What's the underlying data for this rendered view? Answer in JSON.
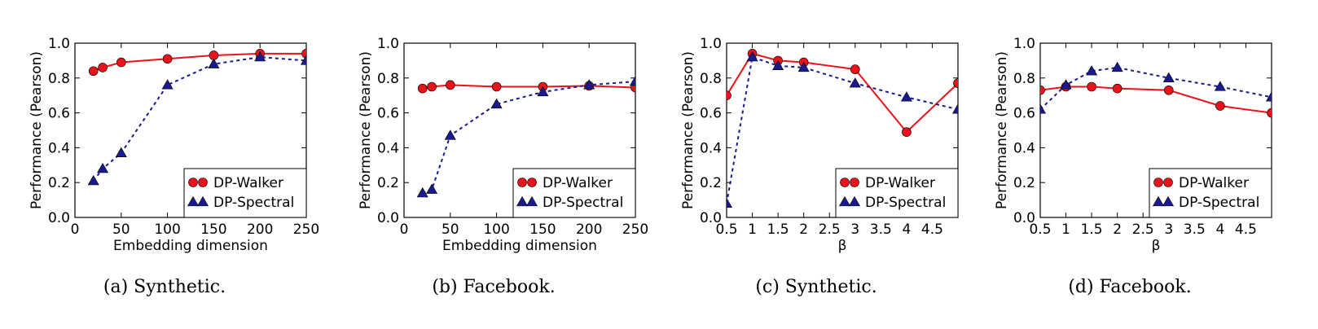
{
  "colors": {
    "walker": "#e8131b",
    "spectral": "#1a1a8f"
  },
  "chart_data": [
    {
      "type": "line",
      "caption": "(a) Synthetic.",
      "xlabel": "Embedding dimension",
      "ylabel": "Performance (Pearson)",
      "xlim": [
        0,
        250
      ],
      "ylim": [
        0.0,
        1.0
      ],
      "xticks": [
        0,
        50,
        100,
        150,
        200,
        250
      ],
      "xtick_labels": [
        "0",
        "50",
        "100",
        "150",
        "200",
        "250"
      ],
      "yticks": [
        0.0,
        0.2,
        0.4,
        0.6,
        0.8,
        1.0
      ],
      "ytick_labels": [
        "0.0",
        "0.2",
        "0.4",
        "0.6",
        "0.8",
        "1.0"
      ],
      "legend_position": "lower-right",
      "series": [
        {
          "name": "DP-Walker",
          "x": [
            20,
            30,
            50,
            100,
            150,
            200,
            250
          ],
          "y": [
            0.84,
            0.86,
            0.89,
            0.91,
            0.93,
            0.94,
            0.94
          ]
        },
        {
          "name": "DP-Spectral",
          "x": [
            20,
            30,
            50,
            100,
            150,
            200,
            250
          ],
          "y": [
            0.21,
            0.28,
            0.37,
            0.76,
            0.88,
            0.92,
            0.9
          ]
        }
      ]
    },
    {
      "type": "line",
      "caption": "(b) Facebook.",
      "xlabel": "Embedding dimension",
      "ylabel": "Performance (Pearson)",
      "xlim": [
        0,
        250
      ],
      "ylim": [
        0.0,
        1.0
      ],
      "xticks": [
        0,
        50,
        100,
        150,
        200,
        250
      ],
      "xtick_labels": [
        "0",
        "50",
        "100",
        "150",
        "200",
        "250"
      ],
      "yticks": [
        0.0,
        0.2,
        0.4,
        0.6,
        0.8,
        1.0
      ],
      "ytick_labels": [
        "0.0",
        "0.2",
        "0.4",
        "0.6",
        "0.8",
        "1.0"
      ],
      "legend_position": "lower-right",
      "series": [
        {
          "name": "DP-Walker",
          "x": [
            20,
            30,
            50,
            100,
            150,
            200,
            250
          ],
          "y": [
            0.74,
            0.75,
            0.76,
            0.75,
            0.75,
            0.755,
            0.745
          ]
        },
        {
          "name": "DP-Spectral",
          "x": [
            20,
            30,
            50,
            100,
            150,
            200,
            250
          ],
          "y": [
            0.14,
            0.16,
            0.47,
            0.65,
            0.72,
            0.76,
            0.78
          ]
        }
      ]
    },
    {
      "type": "line",
      "caption": "(c) Synthetic.",
      "xlabel": "β",
      "ylabel": "Performance (Pearson)",
      "xlim": [
        0.5,
        5
      ],
      "ylim": [
        0.0,
        1.0
      ],
      "xticks": [
        0.5,
        1,
        1.5,
        2,
        2.5,
        3,
        3.5,
        4,
        4.5
      ],
      "xtick_labels": [
        "0.5",
        "1",
        "1.5",
        "2",
        "2.5",
        "3",
        "3.5",
        "4",
        "4.5"
      ],
      "yticks": [
        0.0,
        0.2,
        0.4,
        0.6,
        0.8,
        1.0
      ],
      "ytick_labels": [
        "0.0",
        "0.2",
        "0.4",
        "0.6",
        "0.8",
        "1.0"
      ],
      "legend_position": "lower-right",
      "series": [
        {
          "name": "DP-Walker",
          "x": [
            0.5,
            1,
            1.5,
            2,
            3,
            4,
            5
          ],
          "y": [
            0.7,
            0.94,
            0.9,
            0.89,
            0.85,
            0.49,
            0.77
          ]
        },
        {
          "name": "DP-Spectral",
          "x": [
            0.5,
            1,
            1.5,
            2,
            3,
            4,
            5
          ],
          "y": [
            0.08,
            0.92,
            0.87,
            0.86,
            0.77,
            0.69,
            0.62
          ]
        }
      ]
    },
    {
      "type": "line",
      "caption": "(d) Facebook.",
      "xlabel": "β",
      "ylabel": "Performance (Pearson)",
      "xlim": [
        0.5,
        5
      ],
      "ylim": [
        0.0,
        1.0
      ],
      "xticks": [
        0.5,
        1,
        1.5,
        2,
        2.5,
        3,
        3.5,
        4,
        4.5
      ],
      "xtick_labels": [
        "0.5",
        "1",
        "1.5",
        "2",
        "2.5",
        "3",
        "3.5",
        "4",
        "4.5"
      ],
      "yticks": [
        0.0,
        0.2,
        0.4,
        0.6,
        0.8,
        1.0
      ],
      "ytick_labels": [
        "0.0",
        "0.2",
        "0.4",
        "0.6",
        "0.8",
        "1.0"
      ],
      "legend_position": "lower-right",
      "series": [
        {
          "name": "DP-Walker",
          "x": [
            0.5,
            1,
            1.5,
            2,
            3,
            4,
            5
          ],
          "y": [
            0.73,
            0.75,
            0.75,
            0.74,
            0.73,
            0.64,
            0.6
          ]
        },
        {
          "name": "DP-Spectral",
          "x": [
            0.5,
            1,
            1.5,
            2,
            3,
            4,
            5
          ],
          "y": [
            0.62,
            0.76,
            0.84,
            0.86,
            0.8,
            0.75,
            0.69
          ]
        }
      ]
    }
  ]
}
